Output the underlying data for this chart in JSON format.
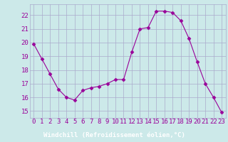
{
  "hours": [
    0,
    1,
    2,
    3,
    4,
    5,
    6,
    7,
    8,
    9,
    10,
    11,
    12,
    13,
    14,
    15,
    16,
    17,
    18,
    19,
    20,
    21,
    22,
    23
  ],
  "values": [
    19.9,
    18.8,
    17.7,
    16.6,
    16.0,
    15.8,
    16.5,
    16.7,
    16.8,
    17.0,
    17.3,
    17.3,
    19.3,
    21.0,
    21.1,
    22.3,
    22.3,
    22.2,
    21.6,
    20.3,
    18.6,
    17.0,
    16.0,
    14.9
  ],
  "line_color": "#990099",
  "marker": "D",
  "marker_size": 2.5,
  "bg_color": "#cce9e9",
  "grid_color": "#aaaacc",
  "ylabel_ticks": [
    15,
    16,
    17,
    18,
    19,
    20,
    21,
    22
  ],
  "ylim": [
    14.5,
    22.8
  ],
  "xlim": [
    -0.5,
    23.5
  ],
  "xlabel": "Windchill (Refroidissement éolien,°C)",
  "xlabel_fontsize": 6.5,
  "tick_fontsize": 6.5,
  "label_color": "#990099",
  "xlabel_bg": "#9900cc",
  "tick_color": "#990099"
}
